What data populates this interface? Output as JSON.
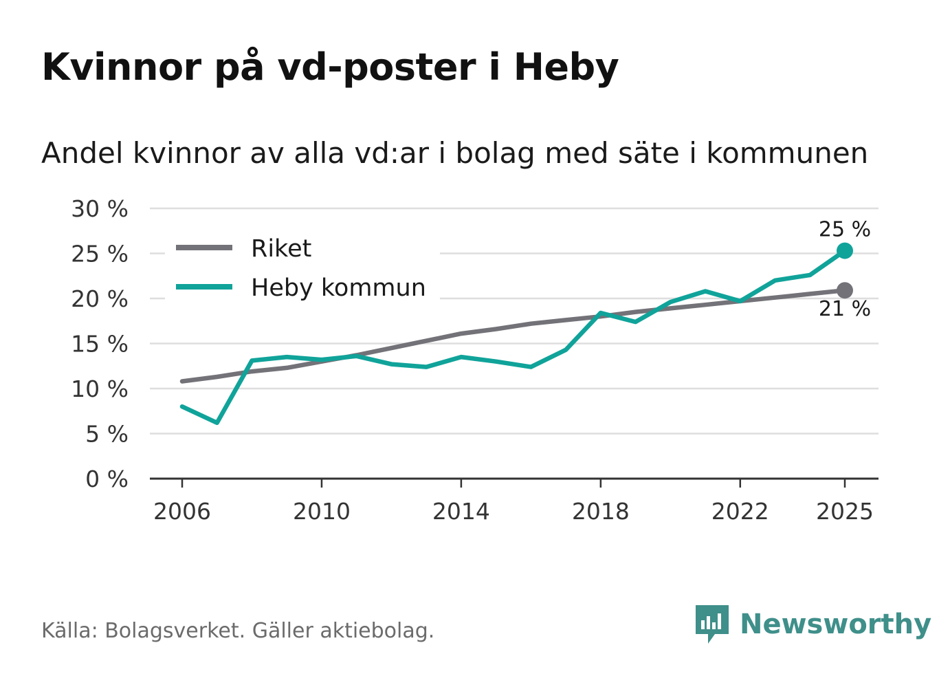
{
  "title": "Kvinnor på vd-poster i Heby",
  "subtitle": "Andel kvinnor av alla vd:ar i bolag med säte i kommunen",
  "source": "Källa: Bolagsverket. Gäller aktiebolag.",
  "brand": {
    "name": "Newsworthy",
    "icon": "newsworthy-logo-icon"
  },
  "colors": {
    "riket": "#737278",
    "heby": "#10a39a",
    "grid": "#dedede",
    "axis": "#333333",
    "brand": "#3f8f8a"
  },
  "chart_data": {
    "type": "line",
    "title": "Kvinnor på vd-poster i Heby",
    "subtitle": "Andel kvinnor av alla vd:ar i bolag med säte i kommunen",
    "xlabel": "",
    "ylabel": "",
    "xlim": [
      2006,
      2025
    ],
    "ylim": [
      0,
      30
    ],
    "x_ticks": [
      2006,
      2010,
      2014,
      2018,
      2022,
      2025
    ],
    "x_tick_labels": [
      "2006",
      "2010",
      "2014",
      "2018",
      "2022",
      "2025"
    ],
    "y_ticks": [
      0,
      5,
      10,
      15,
      20,
      25,
      30
    ],
    "y_tick_labels": [
      "0 %",
      "5 %",
      "10 %",
      "15 %",
      "20 %",
      "25 %",
      "30 %"
    ],
    "grid": true,
    "legend_position": "top-left",
    "x": [
      2006,
      2007,
      2008,
      2009,
      2010,
      2011,
      2012,
      2013,
      2014,
      2015,
      2016,
      2017,
      2018,
      2019,
      2020,
      2021,
      2022,
      2023,
      2024,
      2025
    ],
    "series": [
      {
        "name": "Riket",
        "color": "#737278",
        "values": [
          10.8,
          11.3,
          11.9,
          12.3,
          13.0,
          13.7,
          14.5,
          15.3,
          16.1,
          16.6,
          17.2,
          17.6,
          18.0,
          18.5,
          18.9,
          19.3,
          19.7,
          20.1,
          20.5,
          20.9
        ],
        "end_label": "21 %"
      },
      {
        "name": "Heby kommun",
        "color": "#10a39a",
        "values": [
          8.0,
          6.2,
          13.1,
          13.5,
          13.2,
          13.6,
          12.7,
          12.4,
          13.5,
          13.0,
          12.4,
          14.3,
          18.4,
          17.4,
          19.6,
          20.8,
          19.7,
          22.0,
          22.6,
          25.3
        ],
        "end_label": "25 %"
      }
    ]
  }
}
